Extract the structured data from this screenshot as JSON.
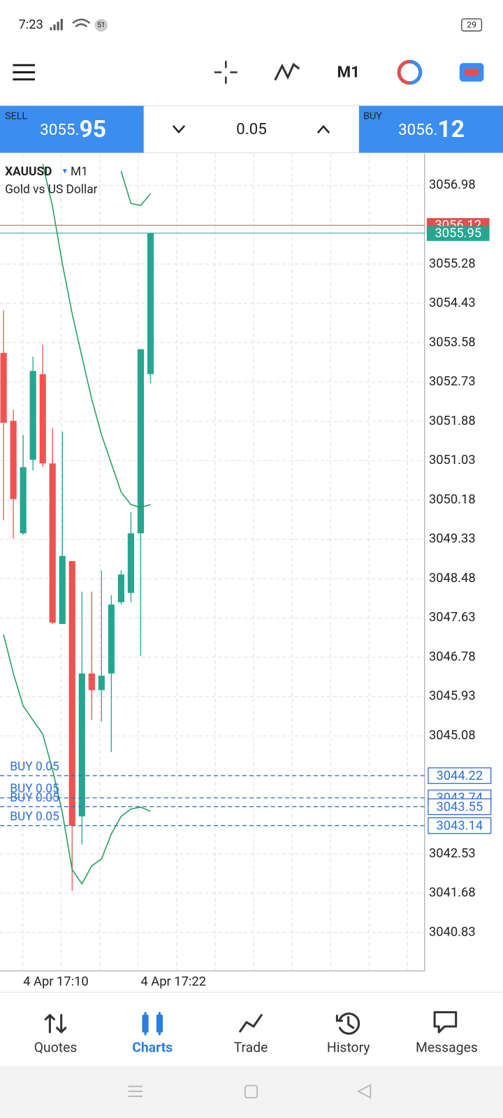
{
  "status_bar": {
    "time": "7:23",
    "wifi_badge": "51",
    "battery": "29"
  },
  "toolbar": {
    "timeframe": "M1"
  },
  "trade_panel": {
    "sell": {
      "label": "SELL",
      "price_main": "3055.",
      "price_pips": "95"
    },
    "volume": "0.05",
    "buy": {
      "label": "BUY",
      "price_main": "3056.",
      "price_pips": "12"
    }
  },
  "chart_data": {
    "type": "candlestick",
    "symbol": "XAUUSD",
    "timeframe": "M1",
    "description": "Gold vs US Dollar",
    "categories": [
      null,
      null,
      "4 Apr 17:10",
      null,
      null,
      null,
      null,
      null,
      null,
      null,
      null,
      null,
      null,
      null,
      "4 Apr 17:22",
      null
    ],
    "open": [
      3053.36,
      3051.89,
      3049.46,
      3051.05,
      3052.9,
      3050.97,
      3047.5,
      3048.86,
      3043.34,
      3046.43,
      3046.07,
      3046.43,
      3047.97,
      3048.17,
      3049.46,
      3052.9
    ],
    "high": [
      3054.28,
      3052.13,
      3051.59,
      3053.28,
      3053.54,
      3051.74,
      3051.66,
      3048.86,
      3048.2,
      3048.2,
      3048.66,
      3048.12,
      3048.66,
      3049.92,
      3053.44,
      3055.95
    ],
    "low": [
      3049.74,
      3049.35,
      3049.43,
      3050.82,
      3050.89,
      3047.5,
      3047.5,
      3041.73,
      3042.73,
      3045.42,
      3045.39,
      3044.73,
      3047.92,
      3047.97,
      3046.81,
      3052.71
    ],
    "close": [
      3051.85,
      3050.2,
      3050.89,
      3052.97,
      3050.97,
      3047.53,
      3048.97,
      3043.14,
      3046.43,
      3046.07,
      3046.38,
      3047.92,
      3048.57,
      3049.46,
      3053.44,
      3055.95
    ],
    "up_color": "#26a690",
    "down_color": "#ef5350",
    "lines": [
      {
        "color": "#1f9e5a",
        "values": [
          null,
          null,
          null,
          null,
          null,
          null,
          null,
          null,
          null,
          null,
          null,
          null,
          3057.29,
          3056.59,
          3056.55,
          3056.8
        ]
      },
      {
        "color": "#1f9e5a",
        "values": [
          null,
          null,
          null,
          null,
          3057.44,
          3056.52,
          3055.29,
          3054.21,
          3053.28,
          3052.36,
          3051.59,
          3050.97,
          3050.35,
          3050.08,
          3050.02,
          3050.08
        ]
      },
      {
        "color": "#1f9e5a",
        "values": [
          3047.27,
          3046.43,
          3045.73,
          3045.42,
          3045.12,
          3044.35,
          3043.42,
          3042.19,
          3041.88,
          3042.27,
          3042.42,
          3042.96,
          3043.34,
          3043.5,
          3043.54,
          3043.45
        ]
      }
    ],
    "ylim": [
      3040.0,
      3057.67
    ],
    "yticks": [
      3056.98,
      3055.28,
      3054.43,
      3053.58,
      3052.73,
      3051.88,
      3051.03,
      3050.18,
      3049.33,
      3048.48,
      3047.63,
      3046.78,
      3045.93,
      3045.08,
      3042.53,
      3041.68,
      3040.83
    ],
    "grid": true,
    "ask": 3056.12,
    "ask_color": "#e05050",
    "bid": 3055.95,
    "bid_color": "#26a690",
    "order_color": "#2f6fd6",
    "orders": [
      {
        "label": "BUY 0.05",
        "price": 3044.22
      },
      {
        "label": "BUY 0.05",
        "price": 3043.74
      },
      {
        "label": "BUY 0.05",
        "price": 3043.55
      },
      {
        "label": "BUY 0.05",
        "price": 3043.14
      }
    ]
  },
  "nav": {
    "items": [
      "Quotes",
      "Charts",
      "Trade",
      "History",
      "Messages"
    ],
    "active": 1
  }
}
